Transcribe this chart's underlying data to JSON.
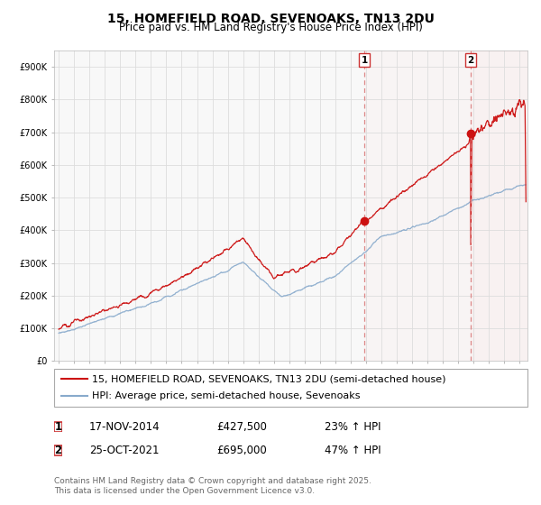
{
  "title": "15, HOMEFIELD ROAD, SEVENOAKS, TN13 2DU",
  "subtitle": "Price paid vs. HM Land Registry's House Price Index (HPI)",
  "ylabel_ticks": [
    "£0",
    "£100K",
    "£200K",
    "£300K",
    "£400K",
    "£500K",
    "£600K",
    "£700K",
    "£800K",
    "£900K"
  ],
  "ytick_values": [
    0,
    100000,
    200000,
    300000,
    400000,
    500000,
    600000,
    700000,
    800000,
    900000
  ],
  "ylim": [
    0,
    950000
  ],
  "xlim_start": 1994.7,
  "xlim_end": 2025.5,
  "xticks": [
    1995,
    1996,
    1997,
    1998,
    1999,
    2000,
    2001,
    2002,
    2003,
    2004,
    2005,
    2006,
    2007,
    2008,
    2009,
    2010,
    2011,
    2012,
    2013,
    2014,
    2015,
    2016,
    2017,
    2018,
    2019,
    2020,
    2021,
    2022,
    2023,
    2024,
    2025
  ],
  "red_color": "#cc1111",
  "blue_color": "#88aacc",
  "sale1_x": 2014.88,
  "sale1_y": 427500,
  "sale1_label": "1",
  "sale2_x": 2021.81,
  "sale2_y": 695000,
  "sale2_label": "2",
  "vline_color": "#dd8888",
  "vline_style": "--",
  "legend_line1": "15, HOMEFIELD ROAD, SEVENOAKS, TN13 2DU (semi-detached house)",
  "legend_line2": "HPI: Average price, semi-detached house, Sevenoaks",
  "table_row1_num": "1",
  "table_row1_date": "17-NOV-2014",
  "table_row1_price": "£427,500",
  "table_row1_hpi": "23% ↑ HPI",
  "table_row2_num": "2",
  "table_row2_date": "25-OCT-2021",
  "table_row2_price": "£695,000",
  "table_row2_hpi": "47% ↑ HPI",
  "footer": "Contains HM Land Registry data © Crown copyright and database right 2025.\nThis data is licensed under the Open Government Licence v3.0.",
  "background_color": "#ffffff",
  "grid_color": "#dddddd",
  "title_fontsize": 10,
  "subtitle_fontsize": 8.5,
  "tick_fontsize": 7,
  "legend_fontsize": 8,
  "table_fontsize": 8.5,
  "footer_fontsize": 6.5
}
